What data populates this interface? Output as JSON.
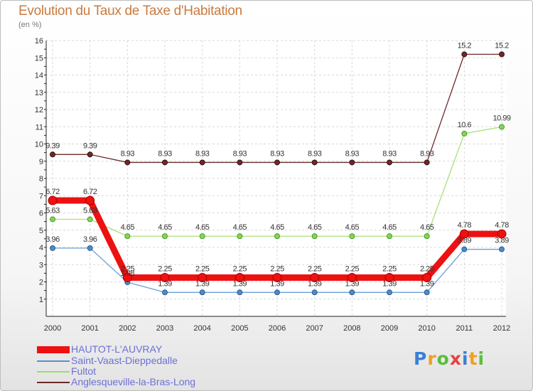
{
  "title": "Evolution du Taux de Taxe d'Habitation",
  "subtitle": "(en %)",
  "logo": "Proxiti",
  "chart_data": {
    "type": "line",
    "title": "Evolution du Taux de Taxe d'Habitation",
    "ylabel": "(en %)",
    "xlabel": "",
    "ylim": [
      0,
      16
    ],
    "yticks": [
      1,
      2,
      3,
      4,
      5,
      6,
      7,
      8,
      9,
      10,
      11,
      12,
      13,
      14,
      15,
      16
    ],
    "categories": [
      "2000",
      "2001",
      "2002",
      "2003",
      "2004",
      "2005",
      "2006",
      "2007",
      "2008",
      "2009",
      "2010",
      "2011",
      "2012"
    ],
    "series": [
      {
        "name": "HAUTOT-L'AUVRAY",
        "color": "#ee1111",
        "values": [
          6.72,
          6.72,
          2.25,
          2.25,
          2.25,
          2.25,
          2.25,
          2.25,
          2.25,
          2.25,
          2.25,
          4.78,
          4.78
        ],
        "labels": [
          "6.72",
          "6.72",
          "2.25",
          "2.25",
          "2.25",
          "2.25",
          "2.25",
          "2.25",
          "2.25",
          "2.25",
          "2.25",
          "4.78",
          "4.78"
        ]
      },
      {
        "name": "Saint-Vaast-Dieppedalle",
        "color": "#5b8fc5",
        "values": [
          3.96,
          3.96,
          1.98,
          1.39,
          1.39,
          1.39,
          1.39,
          1.39,
          1.39,
          1.39,
          1.39,
          3.89,
          3.89
        ],
        "labels": [
          "3.96",
          "3.96",
          "1.98",
          "1.39",
          "1.39",
          "1.39",
          "1.39",
          "1.39",
          "1.39",
          "1.39",
          "1.39",
          "3.89",
          "3.89"
        ]
      },
      {
        "name": "Fultot",
        "color": "#9adc6e",
        "values": [
          5.63,
          5.63,
          4.65,
          4.65,
          4.65,
          4.65,
          4.65,
          4.65,
          4.65,
          4.65,
          4.65,
          10.6,
          10.99
        ],
        "labels": [
          "5.63",
          "5.63",
          "4.65",
          "4.65",
          "4.65",
          "4.65",
          "4.65",
          "4.65",
          "4.65",
          "4.65",
          "4.65",
          "10.6",
          "10.99"
        ]
      },
      {
        "name": "Anglesqueville-la-Bras-Long",
        "color": "#6b2a2a",
        "values": [
          9.39,
          9.39,
          8.93,
          8.93,
          8.93,
          8.93,
          8.93,
          8.93,
          8.93,
          8.93,
          8.93,
          15.2,
          15.2
        ],
        "labels": [
          "9.39",
          "9.39",
          "8.93",
          "8.93",
          "8.93",
          "8.93",
          "8.93",
          "8.93",
          "8.93",
          "8.93",
          "8.93",
          "15.2",
          "15.2"
        ]
      }
    ]
  }
}
